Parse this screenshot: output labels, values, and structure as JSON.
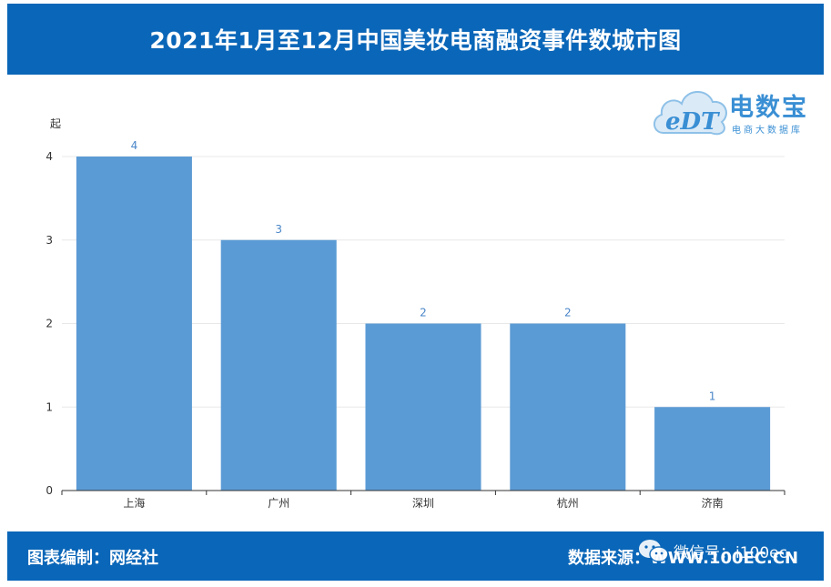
{
  "header": {
    "title": "2021年1月至12月中国美妆电商融资事件数城市图"
  },
  "footer": {
    "left_label": "图表编制：网经社",
    "right_label": "数据来源：WWW.100EC.CN",
    "wechat_text": "微信号：i100ec"
  },
  "logo": {
    "brand_cn": "电数宝",
    "brand_sub": "电商大数据库",
    "mark_text": "eDT"
  },
  "colors": {
    "bar": "#5b9bd5",
    "header_bg": "#0a66b8",
    "value_label": "#4a86c8"
  },
  "chart_data": {
    "type": "bar",
    "title": "2021年1月至12月中国美妆电商融资事件数城市图",
    "xlabel": "",
    "ylabel": "起",
    "categories": [
      "上海",
      "广州",
      "深圳",
      "杭州",
      "济南"
    ],
    "values": [
      4,
      3,
      2,
      2,
      1
    ],
    "ylim": [
      0,
      4
    ],
    "yticks": [
      "0",
      "1",
      "2",
      "3",
      "4"
    ],
    "grid": true,
    "data_labels": true
  }
}
